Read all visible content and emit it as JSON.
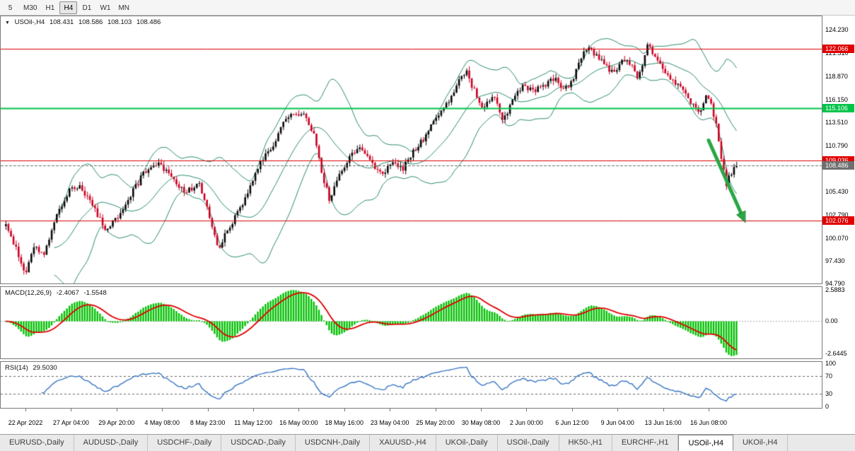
{
  "toolbar": {
    "timeframes": [
      "5",
      "M30",
      "H1",
      "H4",
      "D1",
      "W1",
      "MN"
    ],
    "active": "H4"
  },
  "chart": {
    "header": {
      "dropdown_icon": "▼",
      "symbol": "USOil-,H4",
      "open": "108.431",
      "high": "108.586",
      "low": "108.103",
      "close": "108.486"
    },
    "y_axis_labels": [
      "124.230",
      "121.510",
      "118.870",
      "116.150",
      "113.510",
      "110.790",
      "105.430",
      "102.790",
      "100.070",
      "97.430",
      "94.790"
    ],
    "price_badges": [
      {
        "text": "122.066",
        "price": 122.066,
        "bg": "#e00000",
        "fg": "#ffffff"
      },
      {
        "text": "115.106",
        "price": 115.106,
        "bg": "#00c44a",
        "fg": "#ffffff"
      },
      {
        "text": "109.036",
        "price": 109.036,
        "bg": "#e00000",
        "fg": "#ffffff"
      },
      {
        "text": "108.486",
        "price": 108.486,
        "bg": "#6f6f6f",
        "fg": "#ffffff"
      },
      {
        "text": "102.076",
        "price": 102.076,
        "bg": "#e00000",
        "fg": "#ffffff"
      }
    ],
    "h_lines": [
      {
        "price": 122.066,
        "color": "#dd0000",
        "width": 1
      },
      {
        "price": 115.106,
        "color": "#00c44a",
        "width": 2
      },
      {
        "price": 109.036,
        "color": "#dd0000",
        "width": 1
      },
      {
        "price": 102.076,
        "color": "#dd0000",
        "width": 1
      }
    ],
    "current_price_line": {
      "price": 108.486,
      "color": "#707070"
    }
  },
  "macd_panel": {
    "label": "MACD(12,26,9)",
    "value_main": "-2.4067",
    "value_signal": "-1.5548",
    "axis": [
      {
        "text": "2.5883",
        "value": 2.5883
      },
      {
        "text": "0.00",
        "value": 0
      },
      {
        "text": "-2.6445",
        "value": -2.6445
      }
    ]
  },
  "rsi_panel": {
    "label": "RSI(14)",
    "value": "29.5030",
    "axis": [
      {
        "text": "100",
        "value": 100
      },
      {
        "text": "70",
        "value": 70
      },
      {
        "text": "30",
        "value": 30
      },
      {
        "text": "0",
        "value": 0
      }
    ],
    "levels": [
      70,
      30
    ]
  },
  "time_axis": {
    "labels": [
      "22 Apr 2022",
      "27 Apr 04:00",
      "29 Apr 20:00",
      "4 May 08:00",
      "8 May 23:00",
      "11 May 12:00",
      "16 May 00:00",
      "18 May 16:00",
      "23 May 04:00",
      "25 May 20:00",
      "30 May 08:00",
      "2 Jun 00:00",
      "6 Jun 12:00",
      "9 Jun 04:00",
      "13 Jun 16:00",
      "16 Jun 08:00"
    ]
  },
  "tabs": {
    "items": [
      "EURUSD-,Daily",
      "AUDUSD-,Daily",
      "USDCHF-,Daily",
      "USDCAD-,Daily",
      "USDCNH-,Daily",
      "XAUUSD-,H4",
      "UKOil-,Daily",
      "USOil-,Daily",
      "HK50-,H1",
      "EURCHF-,H1",
      "USOil-,H4",
      "UKOil-,H4"
    ],
    "active": "USOil-,H4"
  },
  "chart_data": {
    "type": "candlestick",
    "symbol": "USOil-,H4",
    "timeframe": "H4",
    "title": "USOil-,H4 108.431 108.586 108.103 108.486",
    "ohlc_current": {
      "open": 108.431,
      "high": 108.586,
      "low": 108.103,
      "close": 108.486
    },
    "ylim": [
      94.8,
      125.8
    ],
    "x_range": [
      "22 Apr 2022",
      "16 Jun 2022"
    ],
    "candle_count": 288,
    "horizontal_levels": [
      122.066,
      115.106,
      109.036,
      102.076
    ],
    "bollinger": {
      "period": 20,
      "deviation": 2
    },
    "macd": {
      "params": [
        12,
        26,
        9
      ],
      "ylim": [
        -3.06,
        2.82
      ],
      "last_main": -2.4067,
      "last_signal": -1.5548
    },
    "rsi": {
      "period": 14,
      "ylim": [
        0,
        100
      ],
      "last": 29.503
    },
    "arrow": {
      "t1": 0.963,
      "p1": 111.4,
      "t2": 1.013,
      "p2": 101.9
    },
    "price_path": [
      [
        0,
        101.5
      ],
      [
        0.012,
        99.3
      ],
      [
        0.026,
        96.0
      ],
      [
        0.04,
        99.2
      ],
      [
        0.052,
        98.2
      ],
      [
        0.067,
        102.0
      ],
      [
        0.084,
        105.3
      ],
      [
        0.1,
        106.3
      ],
      [
        0.12,
        103.8
      ],
      [
        0.137,
        100.8
      ],
      [
        0.153,
        102.6
      ],
      [
        0.172,
        105.2
      ],
      [
        0.19,
        107.8
      ],
      [
        0.21,
        108.7
      ],
      [
        0.229,
        106.8
      ],
      [
        0.247,
        105.3
      ],
      [
        0.263,
        106.6
      ],
      [
        0.278,
        102.8
      ],
      [
        0.291,
        98.8
      ],
      [
        0.307,
        101.6
      ],
      [
        0.322,
        103.6
      ],
      [
        0.337,
        106.6
      ],
      [
        0.351,
        109.2
      ],
      [
        0.365,
        110.6
      ],
      [
        0.38,
        113.6
      ],
      [
        0.394,
        114.7
      ],
      [
        0.409,
        114.3
      ],
      [
        0.42,
        112.5
      ],
      [
        0.432,
        107.8
      ],
      [
        0.444,
        104.2
      ],
      [
        0.456,
        107.6
      ],
      [
        0.471,
        109.6
      ],
      [
        0.485,
        110.4
      ],
      [
        0.5,
        108.9
      ],
      [
        0.514,
        107.6
      ],
      [
        0.528,
        108.6
      ],
      [
        0.543,
        108.1
      ],
      [
        0.557,
        110.1
      ],
      [
        0.572,
        111.6
      ],
      [
        0.586,
        113.6
      ],
      [
        0.601,
        115.1
      ],
      [
        0.615,
        117.6
      ],
      [
        0.63,
        119.3
      ],
      [
        0.641,
        117.2
      ],
      [
        0.654,
        115.1
      ],
      [
        0.667,
        116.6
      ],
      [
        0.68,
        113.6
      ],
      [
        0.692,
        115.6
      ],
      [
        0.707,
        118.0
      ],
      [
        0.721,
        117.1
      ],
      [
        0.736,
        117.6
      ],
      [
        0.75,
        118.6
      ],
      [
        0.765,
        117.1
      ],
      [
        0.779,
        119.1
      ],
      [
        0.794,
        122.2
      ],
      [
        0.808,
        121.4
      ],
      [
        0.821,
        120.0
      ],
      [
        0.832,
        119.1
      ],
      [
        0.844,
        121.0
      ],
      [
        0.856,
        120.1
      ],
      [
        0.866,
        118.6
      ],
      [
        0.878,
        122.4
      ],
      [
        0.89,
        121.0
      ],
      [
        0.902,
        119.1
      ],
      [
        0.914,
        118.1
      ],
      [
        0.927,
        117.1
      ],
      [
        0.938,
        115.6
      ],
      [
        0.948,
        114.6
      ],
      [
        0.958,
        116.4
      ],
      [
        0.965,
        115.7
      ],
      [
        0.972,
        113.1
      ],
      [
        0.979,
        109.6
      ],
      [
        0.986,
        106.4
      ],
      [
        0.994,
        107.9
      ],
      [
        1,
        108.486
      ]
    ]
  },
  "colors": {
    "bull": "#0a0a0a",
    "bear": "#cc0022",
    "bollinger": "#2a8c6e",
    "macd_hist": "#00c000",
    "macd_signal": "#e00000",
    "rsi_line": "#3a76c4",
    "arrow": "#28a745",
    "arrow_edge": "#1d7a33"
  }
}
